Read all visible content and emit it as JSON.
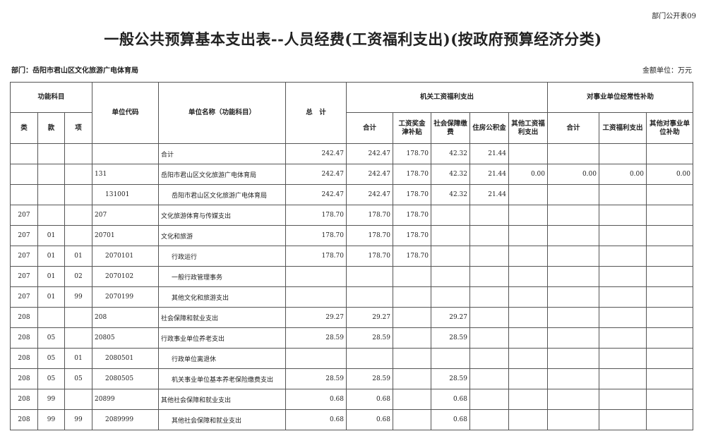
{
  "tag": "部门公开表09",
  "title": "一般公共预算基本支出表--人员经费(工资福利支出)(按政府预算经济分类)",
  "department": "部门：岳阳市君山区文化旅游广电体育局",
  "unit": "金额单位：万元",
  "headers": {
    "func": "功能科目",
    "lei": "类",
    "kuan": "款",
    "xiang": "项",
    "code": "单位代码",
    "name": "单位名称（功能科目）",
    "total": "总　计",
    "jg": "机关工资福利支出",
    "sy": "对事业单位经常性补助",
    "jg_cols": [
      "合计",
      "工资奖金津补贴",
      "社会保障缴费",
      "住房公积金",
      "其他工资福利支出"
    ],
    "sy_cols": [
      "合计",
      "工资福利支出",
      "其他对事业单位补助"
    ]
  },
  "rows": [
    {
      "lei": "",
      "kuan": "",
      "xiang": "",
      "code": "",
      "name": "合计",
      "v": [
        "242.47",
        "242.47",
        "178.70",
        "42.32",
        "21.44",
        "",
        "",
        "",
        ""
      ],
      "ci": 0,
      "ni": 0
    },
    {
      "lei": "",
      "kuan": "",
      "xiang": "",
      "code": "131",
      "name": "岳阳市君山区文化旅游广电体育局",
      "v": [
        "242.47",
        "242.47",
        "178.70",
        "42.32",
        "21.44",
        "0.00",
        "0.00",
        "0.00",
        "0.00"
      ],
      "ci": 0,
      "ni": 0
    },
    {
      "lei": "",
      "kuan": "",
      "xiang": "",
      "code": "131001",
      "name": "岳阳市君山区文化旅游广电体育局",
      "v": [
        "242.47",
        "242.47",
        "178.70",
        "42.32",
        "21.44",
        "",
        "",
        "",
        ""
      ],
      "ci": 1,
      "ni": 1
    },
    {
      "lei": "207",
      "kuan": "",
      "xiang": "",
      "code": "207",
      "name": "文化旅游体育与传媒支出",
      "v": [
        "178.70",
        "178.70",
        "178.70",
        "",
        "",
        "",
        "",
        "",
        ""
      ],
      "ci": 0,
      "ni": 0
    },
    {
      "lei": "207",
      "kuan": "01",
      "xiang": "",
      "code": "20701",
      "name": "文化和旅游",
      "v": [
        "178.70",
        "178.70",
        "178.70",
        "",
        "",
        "",
        "",
        "",
        ""
      ],
      "ci": 0,
      "ni": 0
    },
    {
      "lei": "207",
      "kuan": "01",
      "xiang": "01",
      "code": "2070101",
      "name": "行政运行",
      "v": [
        "178.70",
        "178.70",
        "178.70",
        "",
        "",
        "",
        "",
        "",
        ""
      ],
      "ci": 1,
      "ni": 1
    },
    {
      "lei": "207",
      "kuan": "01",
      "xiang": "02",
      "code": "2070102",
      "name": "一般行政管理事务",
      "v": [
        "",
        "",
        "",
        "",
        "",
        "",
        "",
        "",
        ""
      ],
      "ci": 1,
      "ni": 1
    },
    {
      "lei": "207",
      "kuan": "01",
      "xiang": "99",
      "code": "2070199",
      "name": "其他文化和旅游支出",
      "v": [
        "",
        "",
        "",
        "",
        "",
        "",
        "",
        "",
        ""
      ],
      "ci": 1,
      "ni": 1
    },
    {
      "lei": "208",
      "kuan": "",
      "xiang": "",
      "code": "208",
      "name": "社会保障和就业支出",
      "v": [
        "29.27",
        "29.27",
        "",
        "29.27",
        "",
        "",
        "",
        "",
        ""
      ],
      "ci": 0,
      "ni": 0
    },
    {
      "lei": "208",
      "kuan": "05",
      "xiang": "",
      "code": "20805",
      "name": "行政事业单位养老支出",
      "v": [
        "28.59",
        "28.59",
        "",
        "28.59",
        "",
        "",
        "",
        "",
        ""
      ],
      "ci": 0,
      "ni": 0
    },
    {
      "lei": "208",
      "kuan": "05",
      "xiang": "01",
      "code": "2080501",
      "name": "行政单位离退休",
      "v": [
        "",
        "",
        "",
        "",
        "",
        "",
        "",
        "",
        ""
      ],
      "ci": 1,
      "ni": 1
    },
    {
      "lei": "208",
      "kuan": "05",
      "xiang": "05",
      "code": "2080505",
      "name": "机关事业单位基本养老保险缴费支出",
      "v": [
        "28.59",
        "28.59",
        "",
        "28.59",
        "",
        "",
        "",
        "",
        ""
      ],
      "ci": 1,
      "ni": 1
    },
    {
      "lei": "208",
      "kuan": "99",
      "xiang": "",
      "code": "20899",
      "name": "其他社会保障和就业支出",
      "v": [
        "0.68",
        "0.68",
        "",
        "0.68",
        "",
        "",
        "",
        "",
        ""
      ],
      "ci": 0,
      "ni": 0
    },
    {
      "lei": "208",
      "kuan": "99",
      "xiang": "99",
      "code": "2089999",
      "name": "其他社会保障和就业支出",
      "v": [
        "0.68",
        "0.68",
        "",
        "0.68",
        "",
        "",
        "",
        "",
        ""
      ],
      "ci": 1,
      "ni": 1
    }
  ]
}
